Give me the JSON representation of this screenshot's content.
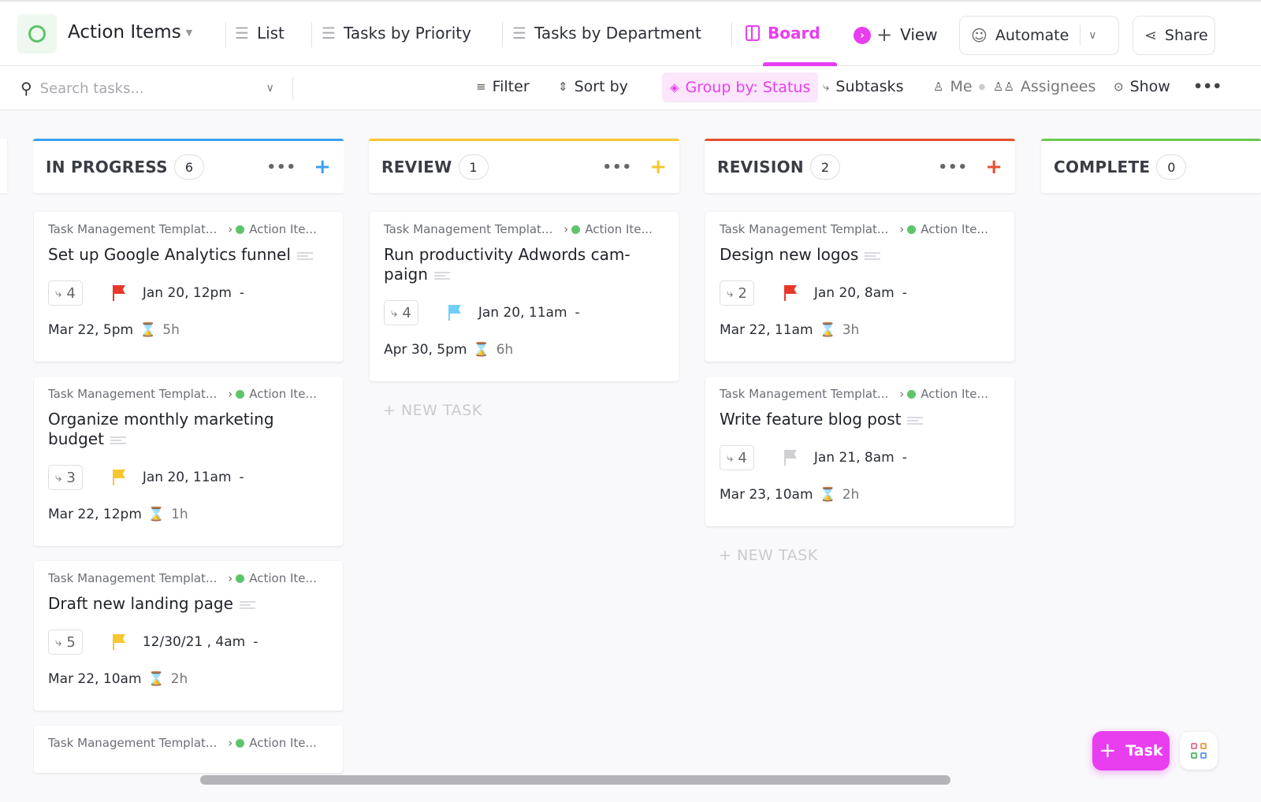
{
  "header": {
    "title": "Action Items",
    "tabs": [
      {
        "label": "List",
        "icon": "list-icon"
      },
      {
        "label": "Tasks by Priority",
        "icon": "list-icon"
      },
      {
        "label": "Tasks by Department",
        "icon": "list-icon"
      },
      {
        "label": "Board",
        "icon": "board-icon",
        "active": true
      }
    ],
    "add_view": "View",
    "automate": "Automate",
    "share": "Share",
    "accent": "#e83ef0"
  },
  "toolbar": {
    "search_placeholder": "Search tasks...",
    "filter": "Filter",
    "sort": "Sort by",
    "group": "Group by: Status",
    "subtasks": "Subtasks",
    "me": "Me",
    "assignees": "Assignees",
    "show": "Show"
  },
  "columns": [
    {
      "name": "IN PROGRESS",
      "count": "6",
      "color": "#3ca0f0",
      "tasks": [
        {
          "crumb": "Task Management Templat...",
          "list": "Action Ite...",
          "title": "Set up Google Analytics funnel",
          "subtasks": "4",
          "flag": "#e8382c",
          "start": "Jan 20, 12pm",
          "due": "Mar 22, 5pm",
          "estimate": "5h"
        },
        {
          "crumb": "Task Management Templat...",
          "list": "Action Ite...",
          "title": "Organize monthly marketing budget",
          "subtasks": "3",
          "flag": "#f8c62f",
          "start": "Jan 20, 11am",
          "due": "Mar 22, 12pm",
          "estimate": "1h"
        },
        {
          "crumb": "Task Management Templat...",
          "list": "Action Ite...",
          "title": "Draft new landing page",
          "subtasks": "5",
          "flag": "#f8c62f",
          "start": "12/30/21 , 4am",
          "due": "Mar 22, 10am",
          "estimate": "2h"
        },
        {
          "crumb": "Task Management Templat...",
          "list": "Action Ite...",
          "partial": true
        }
      ]
    },
    {
      "name": "REVIEW",
      "count": "1",
      "color": "#f8c62f",
      "new_task": "+ NEW TASK",
      "tasks": [
        {
          "crumb": "Task Management Templat...",
          "list": "Action Ite...",
          "title": "Run productivity Adwords cam-paign",
          "subtasks": "4",
          "flag": "#6fcff7",
          "start": "Jan 20, 11am",
          "due": "Apr 30, 5pm",
          "estimate": "6h"
        }
      ]
    },
    {
      "name": "REVISION",
      "count": "2",
      "color": "#e8502c",
      "new_task": "+ NEW TASK",
      "tasks": [
        {
          "crumb": "Task Management Templat...",
          "list": "Action Ite...",
          "title": "Design new logos",
          "subtasks": "2",
          "flag": "#e8382c",
          "start": "Jan 20, 8am",
          "due": "Mar 22, 11am",
          "estimate": "3h"
        },
        {
          "crumb": "Task Management Templat...",
          "list": "Action Ite...",
          "title": "Write feature blog post",
          "subtasks": "4",
          "flag": "#d0d0d4",
          "start": "Jan 21, 8am",
          "due": "Mar 23, 10am",
          "estimate": "2h"
        }
      ]
    },
    {
      "name": "COMPLETE",
      "count": "0",
      "color": "#6bc950",
      "tasks": []
    }
  ],
  "fab": {
    "label": "Task"
  }
}
